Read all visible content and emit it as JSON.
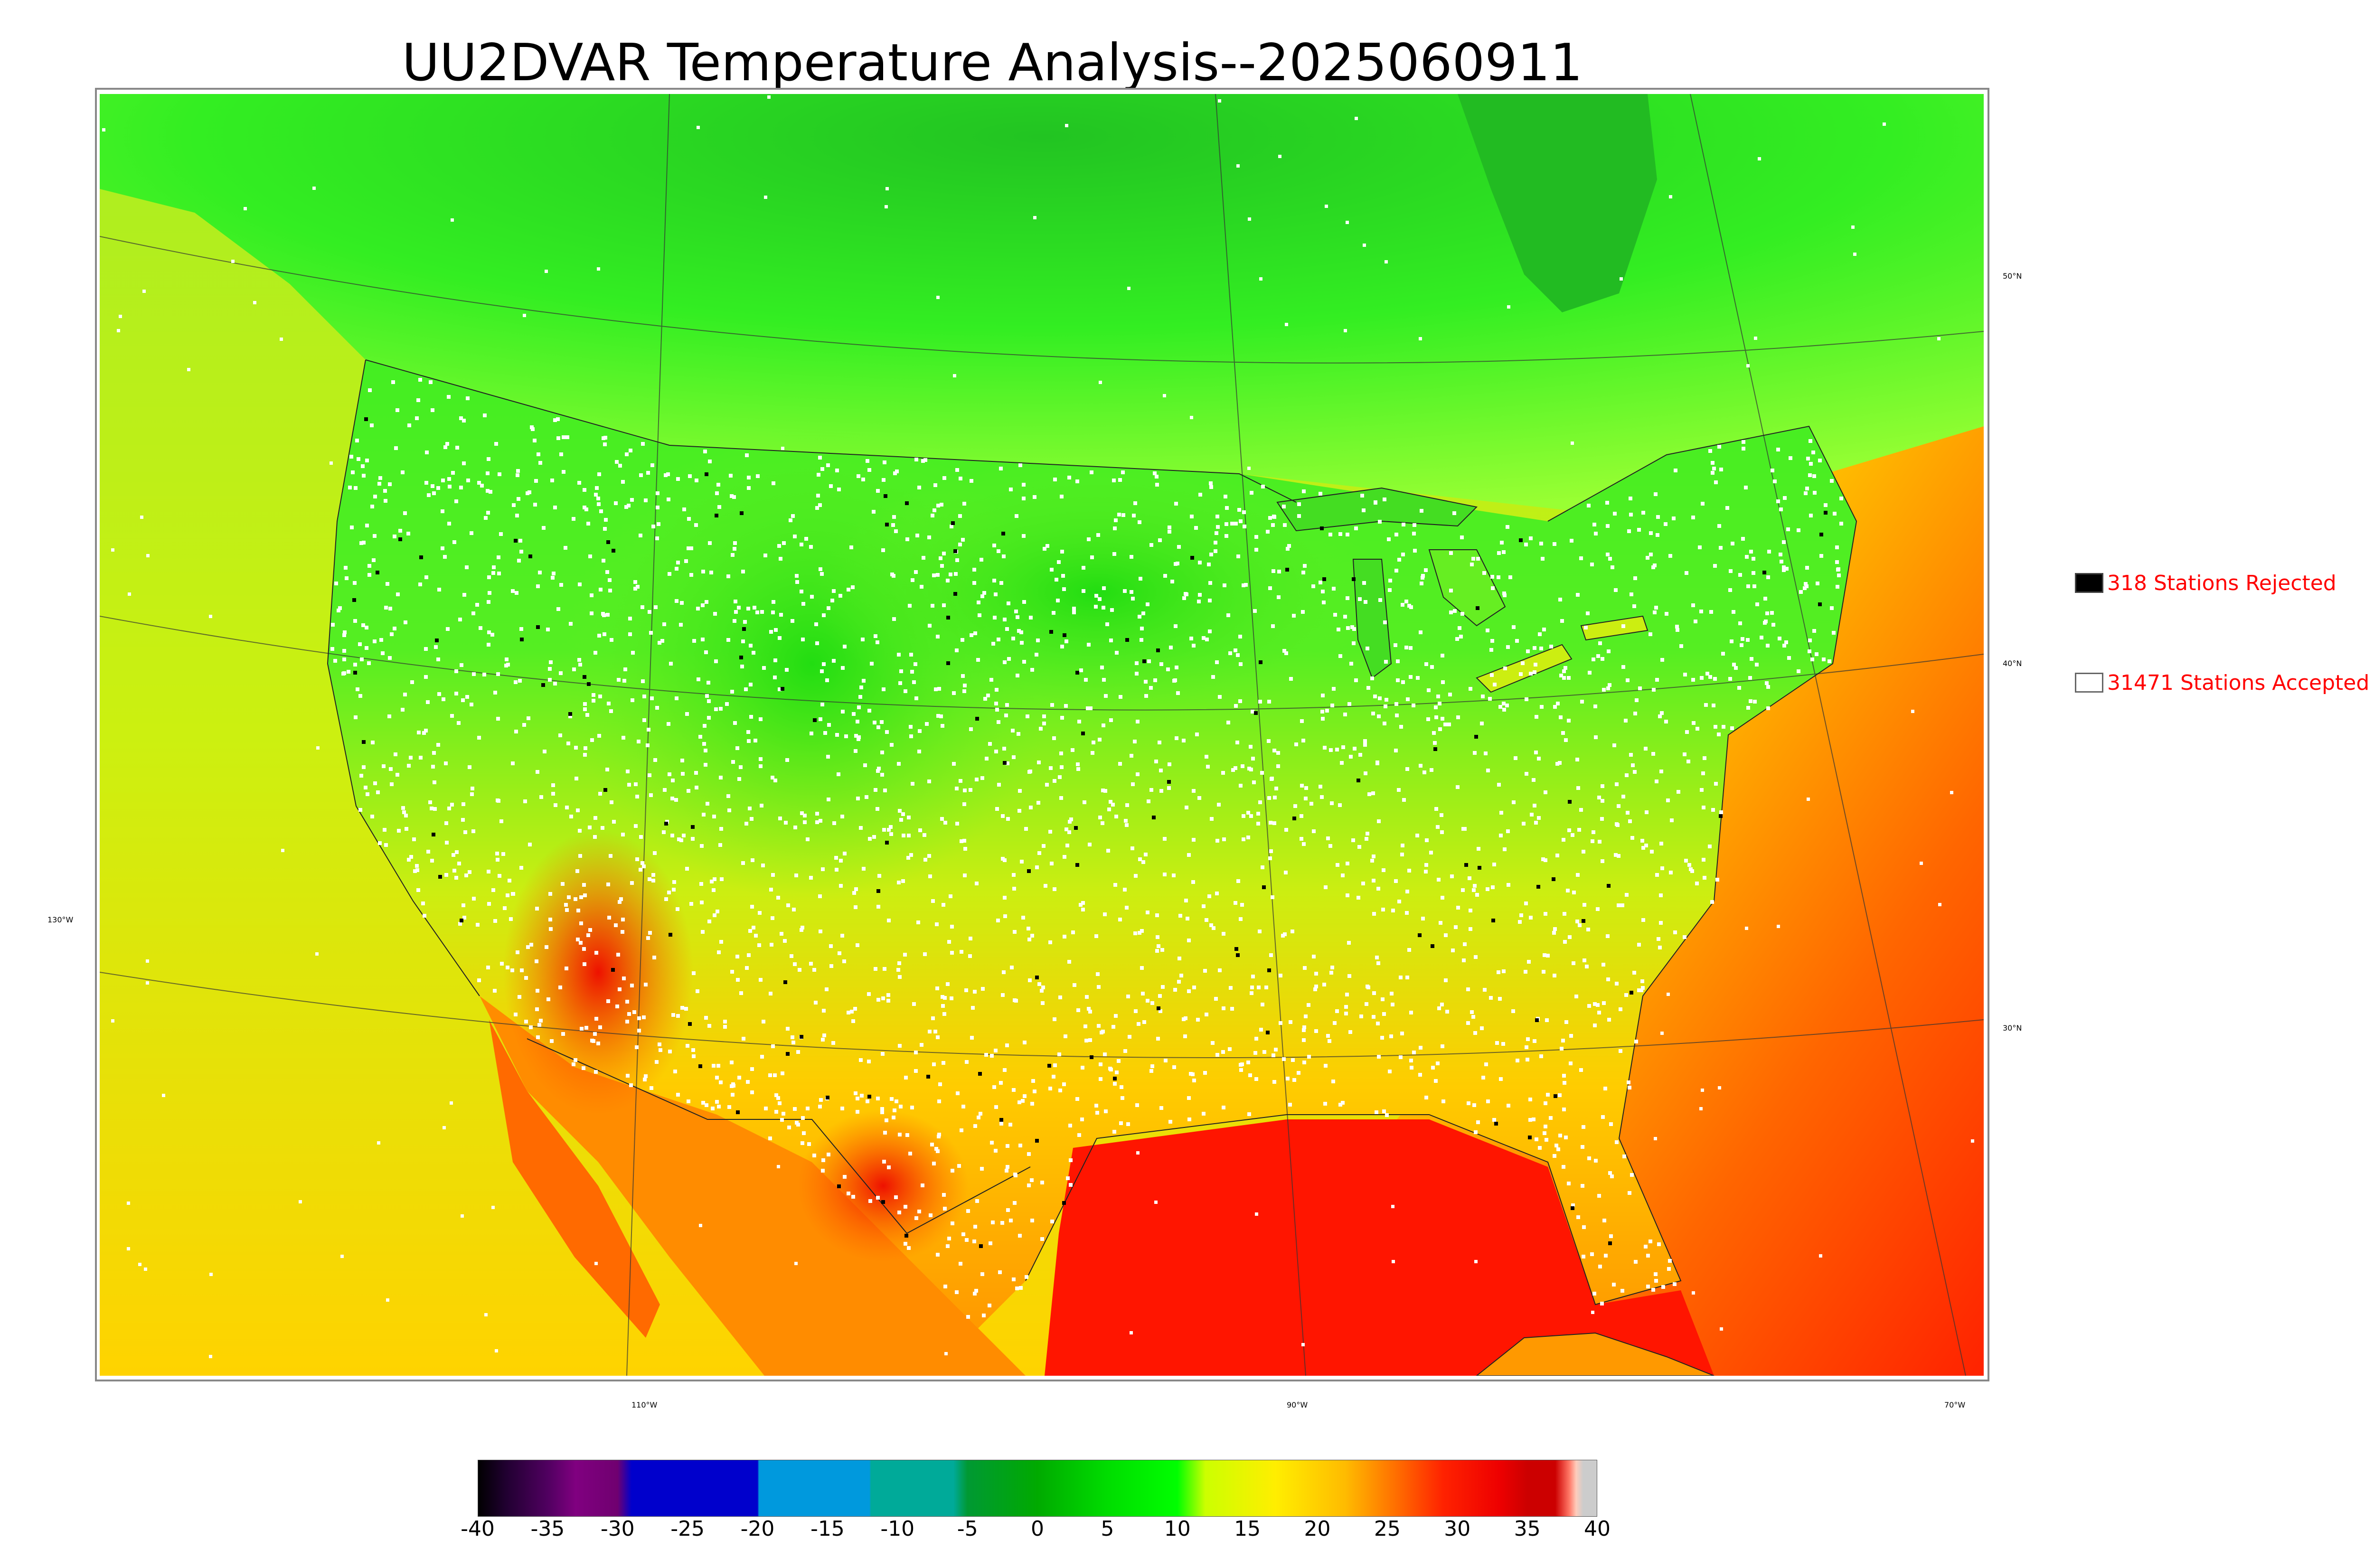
{
  "title": "UU2DVAR Temperature Analysis--2025060911",
  "legend": {
    "rejected": {
      "label": "318 Stations Rejected",
      "swatch_color": "#000000"
    },
    "accepted": {
      "label": "31471 Stations Accepted",
      "swatch_color": "#ffffff"
    }
  },
  "lon_labels": [
    "130°W",
    "110°W",
    "90°W",
    "70°W"
  ],
  "lat_labels": [
    "50°N",
    "40°N",
    "30°N"
  ],
  "colorbar": {
    "ticks": [
      "-40",
      "-35",
      "-30",
      "-25",
      "-20",
      "-15",
      "-10",
      "-5",
      "0",
      "5",
      "10",
      "15",
      "20",
      "25",
      "30",
      "35",
      "40"
    ],
    "range": [
      -40,
      40
    ]
  },
  "colors": {
    "text_red": "#ff0000",
    "cool": "#00dd00",
    "mild": "#ccff00",
    "warm": "#ffd000",
    "hot": "#ff0000",
    "station": "#ffffff",
    "rejected_station": "#000000"
  }
}
